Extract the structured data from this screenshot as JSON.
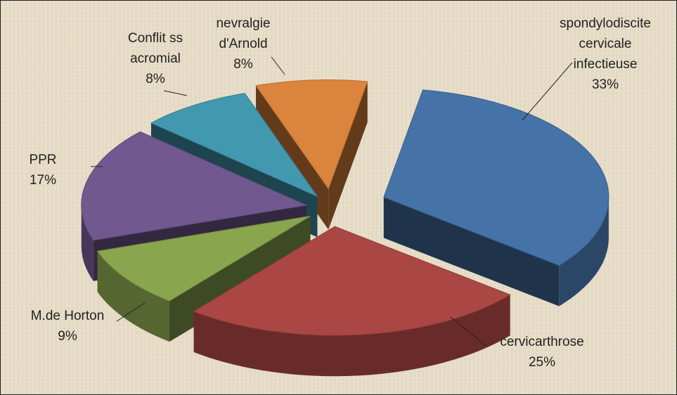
{
  "chart_data": {
    "type": "pie",
    "style": "3d-exploded",
    "background": "parchment",
    "slices": [
      {
        "name": "spondylodiscite cervicale infectieuse",
        "label_lines": [
          "spondylodiscite",
          "cervicale",
          "infectieuse"
        ],
        "value": 33,
        "pct_label": "33%",
        "color": "#4573A7"
      },
      {
        "name": "cervicarthrose",
        "label_lines": [
          "cervicarthrose"
        ],
        "value": 25,
        "pct_label": "25%",
        "color": "#AA4644"
      },
      {
        "name": "M.de Horton",
        "label_lines": [
          "M.de Horton"
        ],
        "value": 9,
        "pct_label": "9%",
        "color": "#89A54E"
      },
      {
        "name": "PPR",
        "label_lines": [
          "PPR"
        ],
        "value": 17,
        "pct_label": "17%",
        "color": "#71588F"
      },
      {
        "name": "Conflit ss acromial",
        "label_lines": [
          "Conflit ss",
          "acromial"
        ],
        "value": 8,
        "pct_label": "8%",
        "color": "#4298AF"
      },
      {
        "name": "nevralgie d'Arnold",
        "label_lines": [
          "nevralgie",
          "d'Arnold"
        ],
        "value": 8,
        "pct_label": "8%",
        "color": "#DB843D"
      }
    ]
  }
}
